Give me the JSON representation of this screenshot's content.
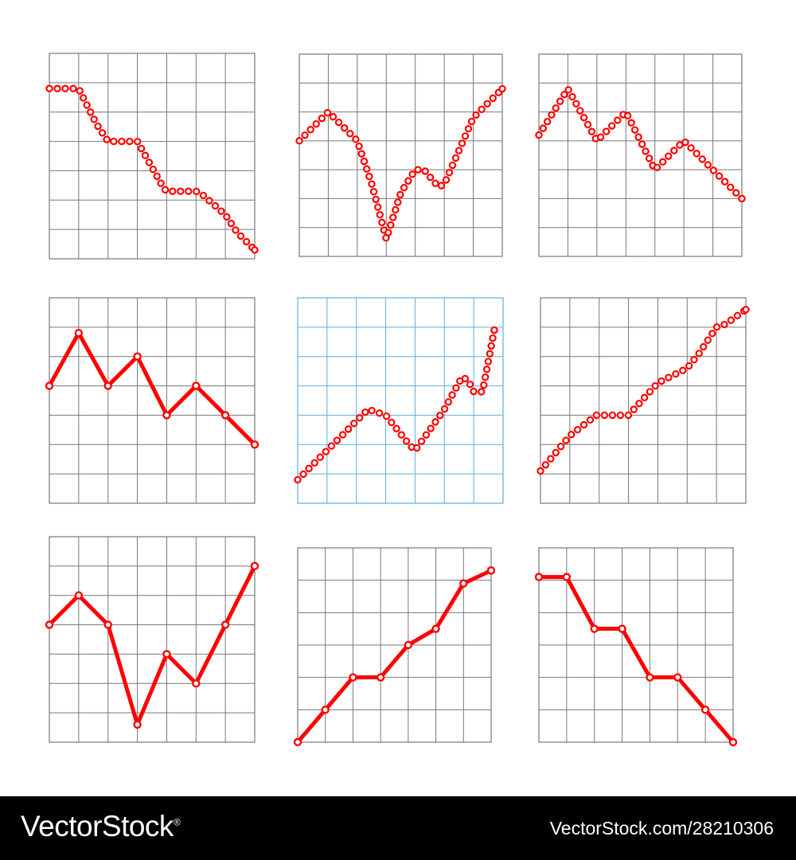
{
  "theme": {
    "line_color": "#ff0000",
    "grid_color": "#777777",
    "alt_grid_color": "#58b0d8",
    "footer_bg": "#000000"
  },
  "footer": {
    "brand": "VectorStock",
    "registered": "®",
    "image_id": "VectorStock.com/28210306"
  },
  "chart_data": [
    {
      "type": "line",
      "style": "dotted",
      "grid_color": "#777777",
      "xlim": [
        0,
        7
      ],
      "ylim": [
        0,
        7
      ],
      "grid": true,
      "series": [
        {
          "x": [
            0,
            0.3,
            0.6,
            1,
            1.6,
            2,
            2.6,
            3,
            3.9,
            4,
            5,
            5.2,
            6,
            6.4,
            7
          ],
          "y": [
            5.8,
            5.8,
            5.8,
            5.8,
            4.6,
            4,
            4,
            4,
            2.4,
            2.3,
            2.3,
            2.2,
            1.5,
            0.9,
            0.3
          ]
        }
      ]
    },
    {
      "type": "line",
      "style": "dotted",
      "grid_color": "#777777",
      "xlim": [
        0,
        7
      ],
      "ylim": [
        0,
        7
      ],
      "grid": true,
      "series": [
        {
          "x": [
            0,
            1,
            2,
            2.5,
            2.95,
            3.0,
            3.5,
            4,
            4.3,
            4.8,
            5,
            6,
            7
          ],
          "y": [
            4,
            5,
            4,
            2.5,
            0.8,
            0.6,
            2.2,
            3,
            3,
            2.4,
            2.5,
            4.8,
            5.8
          ]
        }
      ]
    },
    {
      "type": "line",
      "style": "dotted",
      "grid_color": "#777777",
      "xlim": [
        0,
        7
      ],
      "ylim": [
        0,
        7
      ],
      "grid": true,
      "series": [
        {
          "x": [
            0,
            1,
            2,
            3,
            4,
            5,
            6,
            7
          ],
          "y": [
            4.2,
            5.8,
            4,
            5,
            3,
            4,
            3,
            2
          ]
        }
      ]
    },
    {
      "type": "line",
      "style": "solid",
      "grid_color": "#777777",
      "xlim": [
        0,
        7
      ],
      "ylim": [
        0,
        7
      ],
      "grid": true,
      "series": [
        {
          "x": [
            0,
            1,
            2,
            3,
            4,
            5,
            6,
            7
          ],
          "y": [
            4,
            5.8,
            4,
            5,
            3,
            4,
            3,
            2
          ]
        }
      ]
    },
    {
      "type": "line",
      "style": "dotted",
      "grid_color": "#58b0d8",
      "xlim": [
        0,
        7
      ],
      "ylim": [
        0,
        7
      ],
      "grid": true,
      "series": [
        {
          "x": [
            0,
            1,
            2.4,
            3,
            3.8,
            4,
            5,
            5.6,
            5.8,
            6,
            6.3,
            6.7
          ],
          "y": [
            0.8,
            1.8,
            3.2,
            3,
            2,
            1.8,
            3.2,
            4.3,
            4.2,
            3.8,
            3.8,
            5.9
          ]
        }
      ]
    },
    {
      "type": "line",
      "style": "dotted",
      "grid_color": "#777777",
      "xlim": [
        0,
        7
      ],
      "ylim": [
        0,
        7
      ],
      "grid": true,
      "series": [
        {
          "x": [
            0,
            1,
            1.9,
            3,
            4,
            5,
            5.4,
            6,
            6.3,
            7
          ],
          "y": [
            1.1,
            2.3,
            3,
            3,
            4.1,
            4.6,
            5.1,
            6,
            6.1,
            6.6
          ]
        }
      ]
    },
    {
      "type": "line",
      "style": "solid",
      "grid_color": "#777777",
      "xlim": [
        0,
        7
      ],
      "ylim": [
        0,
        7
      ],
      "grid": true,
      "series": [
        {
          "x": [
            0,
            1,
            2,
            3,
            4,
            5,
            6,
            7
          ],
          "y": [
            4,
            5,
            4,
            0.6,
            3,
            2,
            4,
            6
          ]
        }
      ]
    },
    {
      "type": "line",
      "style": "solid",
      "grid_color": "#777777",
      "xlim": [
        0,
        7
      ],
      "ylim": [
        0,
        6
      ],
      "grid": true,
      "series": [
        {
          "x": [
            0,
            1,
            2,
            3,
            4,
            5,
            6,
            7
          ],
          "y": [
            0,
            1,
            2,
            2,
            3,
            3.5,
            4.9,
            5.3
          ]
        }
      ]
    },
    {
      "type": "line",
      "style": "solid",
      "grid_color": "#777777",
      "xlim": [
        0,
        7
      ],
      "ylim": [
        0,
        6
      ],
      "grid": true,
      "series": [
        {
          "x": [
            0,
            1,
            2,
            3,
            4,
            5,
            6,
            7
          ],
          "y": [
            5.1,
            5.1,
            3.5,
            3.5,
            2,
            2,
            1,
            0
          ]
        }
      ]
    }
  ]
}
